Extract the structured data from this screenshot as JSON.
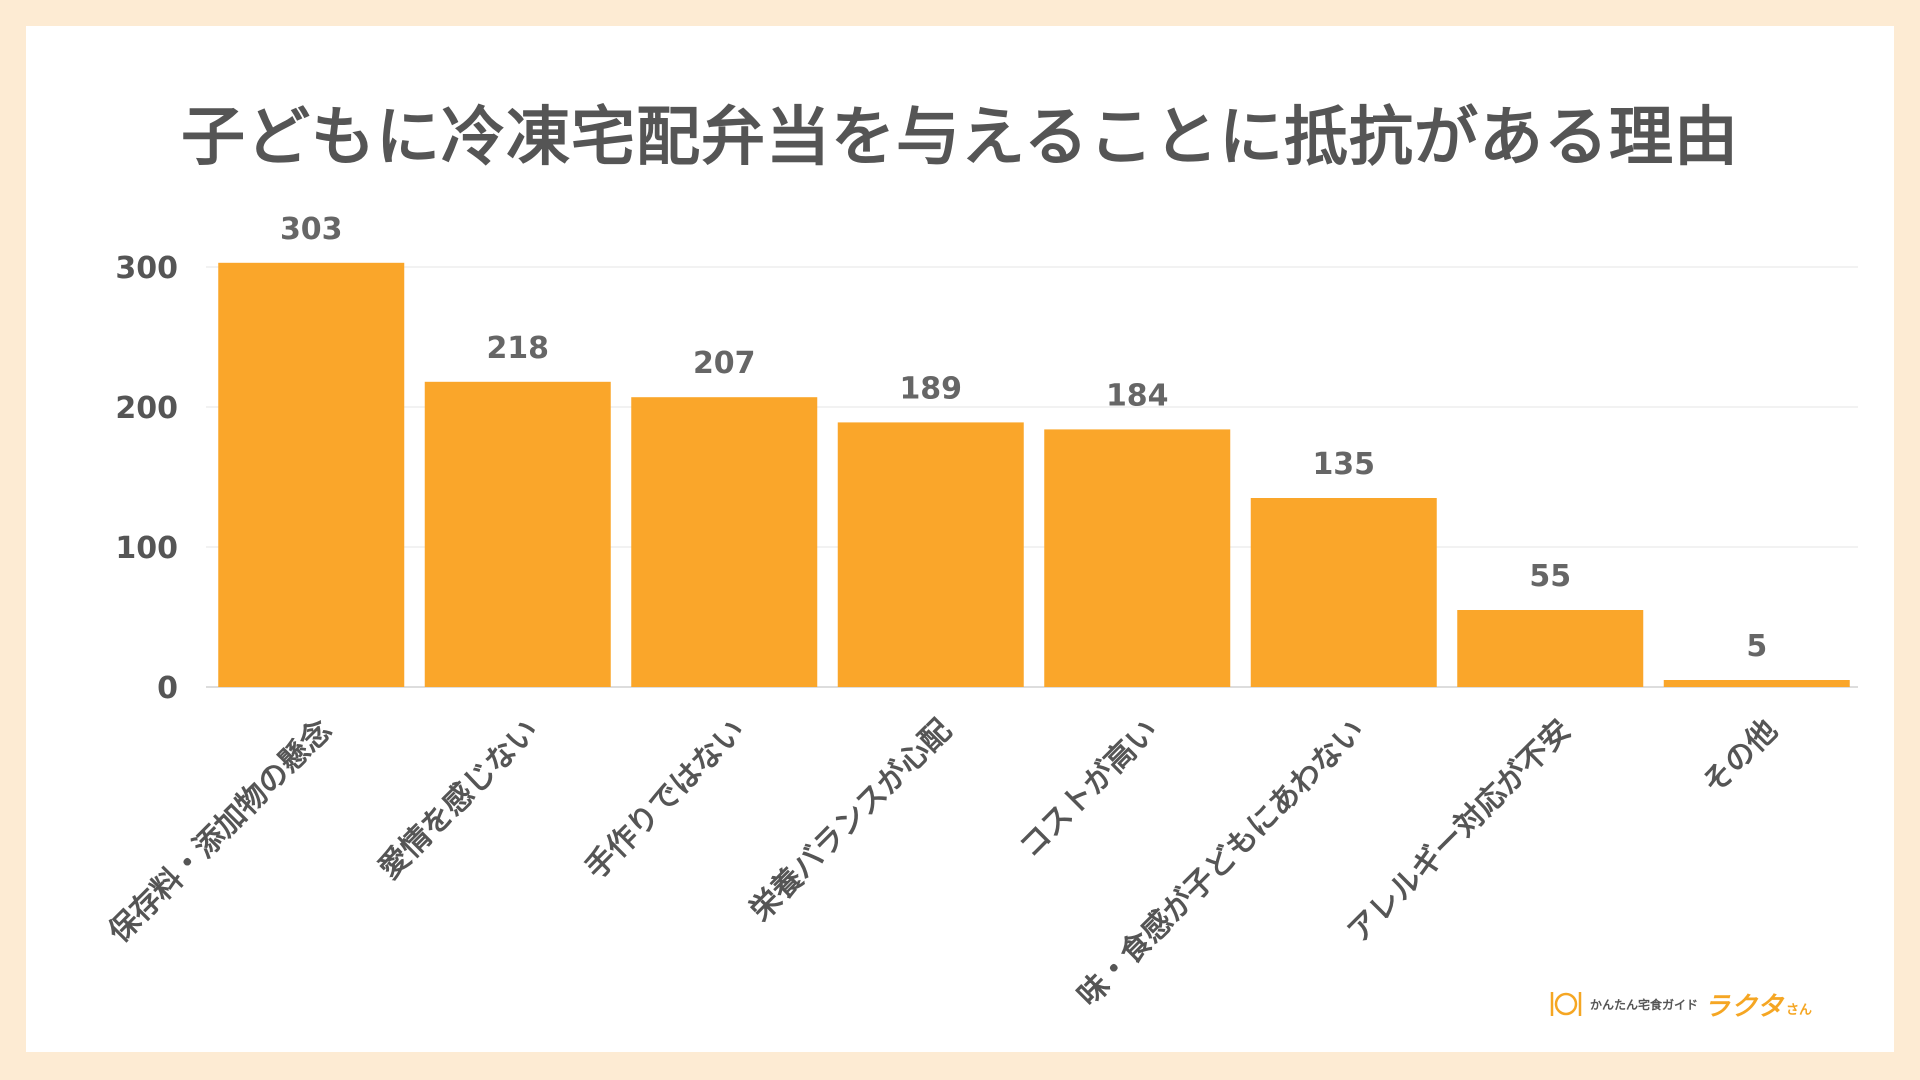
{
  "colors": {
    "background": "#fdebd3",
    "card": "#ffffff",
    "bar": "#faa62a",
    "text": "#555555",
    "grid": "#e6e6e6"
  },
  "brand": {
    "icon": "cutlery-plate-icon",
    "sub": "かんたん宅食ガイド",
    "main": "ラクタ",
    "suffix": "さん"
  },
  "chart_data": {
    "type": "bar",
    "title": "子どもに冷凍宅配弁当を与えることに抵抗がある理由",
    "xlabel": "",
    "ylabel": "",
    "categories": [
      "保存料・添加物の懸念",
      "愛情を感じない",
      "手作りではない",
      "栄養バランスが心配",
      "コストが高い",
      "味・食感が子どもにあわない",
      "アレルギー対応が不安",
      "その他"
    ],
    "values": [
      303,
      218,
      207,
      189,
      184,
      135,
      55,
      5
    ],
    "yticks": [
      0,
      100,
      200,
      300
    ],
    "ylim": [
      0,
      300
    ],
    "grid": true,
    "legend": "none",
    "data_labels": true
  }
}
